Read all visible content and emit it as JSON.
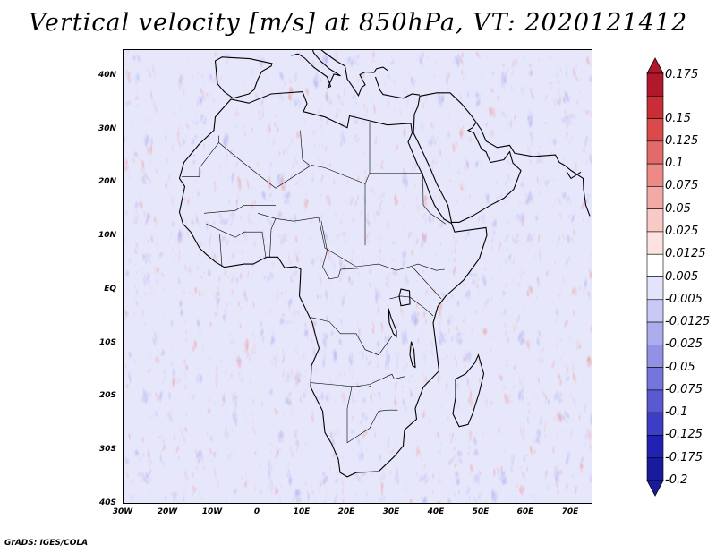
{
  "title": "Vertical velocity [m/s] at 850hPa, VT: 2020121412",
  "credit": "GrADS: IGES/COLA",
  "map": {
    "region": "Africa",
    "lat_range": [
      -40,
      45
    ],
    "lon_range": [
      -30,
      75
    ],
    "lat_ticks": [
      "40N",
      "30N",
      "20N",
      "10N",
      "EQ",
      "10S",
      "20S",
      "30S",
      "40S"
    ],
    "lat_values": [
      40,
      30,
      20,
      10,
      0,
      -10,
      -20,
      -30,
      -40
    ],
    "lon_ticks": [
      "30W",
      "20W",
      "10W",
      "0",
      "10E",
      "20E",
      "30E",
      "40E",
      "50E",
      "60E",
      "70E"
    ],
    "lon_values": [
      -30,
      -20,
      -10,
      0,
      10,
      20,
      30,
      40,
      50,
      60,
      70
    ]
  },
  "colorbar": {
    "labels": [
      "0.175",
      "0.15",
      "0.125",
      "0.1",
      "0.075",
      "0.05",
      "0.025",
      "0.0125",
      "0.005",
      "-0.005",
      "-0.0125",
      "-0.025",
      "-0.05",
      "-0.075",
      "-0.1",
      "-0.125",
      "-0.175",
      "-0.2"
    ],
    "colors": [
      "#b2182b",
      "#c92d35",
      "#da4a4a",
      "#e36a6a",
      "#ec8a88",
      "#f3aaa6",
      "#f8c9c5",
      "#fce3e0",
      "#ffffff",
      "#e3e3fb",
      "#c9c9f5",
      "#adadee",
      "#9191e6",
      "#7575dd",
      "#5959d2",
      "#3d3dc6",
      "#2121b4",
      "#1a1a9c"
    ]
  }
}
